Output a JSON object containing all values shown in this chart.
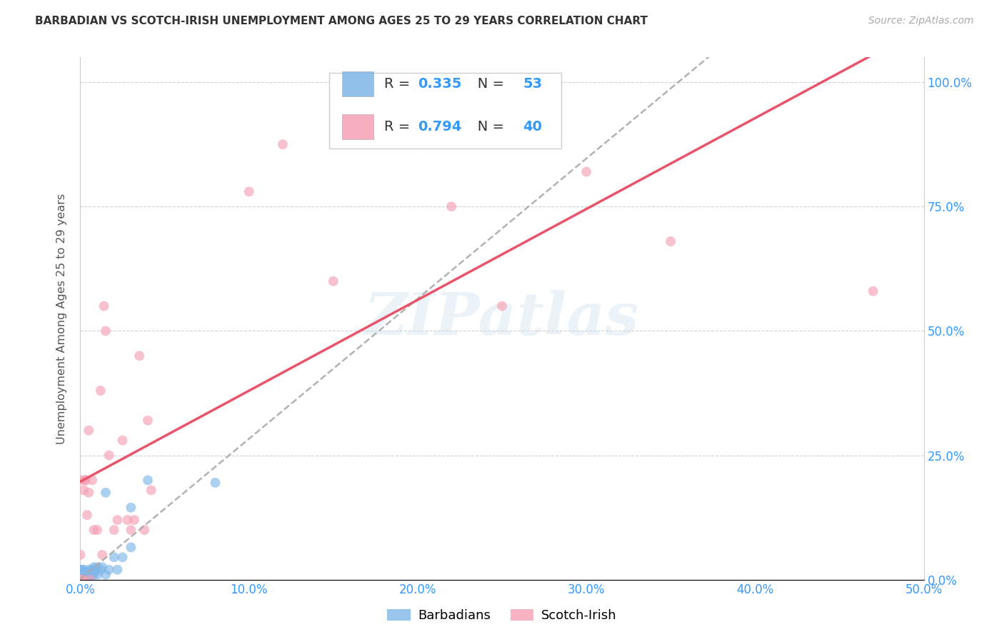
{
  "title": "BARBADIAN VS SCOTCH-IRISH UNEMPLOYMENT AMONG AGES 25 TO 29 YEARS CORRELATION CHART",
  "source": "Source: ZipAtlas.com",
  "ylabel": "Unemployment Among Ages 25 to 29 years",
  "xlim": [
    0.0,
    0.5
  ],
  "ylim": [
    0.0,
    1.05
  ],
  "xticks": [
    0.0,
    0.1,
    0.2,
    0.3,
    0.4,
    0.5
  ],
  "yticks": [
    0.0,
    0.25,
    0.5,
    0.75,
    1.0
  ],
  "xticklabels": [
    "0.0%",
    "10.0%",
    "20.0%",
    "30.0%",
    "40.0%",
    "50.0%"
  ],
  "yticklabels_left": [
    "0.0%",
    "25.0%",
    "50.0%",
    "75.0%",
    "100.0%"
  ],
  "yticklabels_right": [
    "0.0%",
    "25.0%",
    "50.0%",
    "75.0%",
    "100.0%"
  ],
  "barbadian_color": "#7eb7e8",
  "scotchirish_color": "#f5a0b5",
  "barbadian_R": 0.335,
  "barbadian_N": 53,
  "scotchirish_R": 0.794,
  "scotchirish_N": 40,
  "barbadian_line_color": "#7eb7e8",
  "scotchirish_line_color": "#e8546a",
  "watermark": "ZIPatlas",
  "legend_label_1": "Barbadians",
  "legend_label_2": "Scotch-Irish",
  "barbadian_x": [
    0.0,
    0.0,
    0.0,
    0.0,
    0.0,
    0.0,
    0.0,
    0.0,
    0.0,
    0.0,
    0.0,
    0.0,
    0.0,
    0.0,
    0.0,
    0.001,
    0.001,
    0.001,
    0.001,
    0.001,
    0.002,
    0.002,
    0.002,
    0.002,
    0.003,
    0.003,
    0.003,
    0.004,
    0.004,
    0.005,
    0.005,
    0.005,
    0.006,
    0.006,
    0.007,
    0.007,
    0.008,
    0.008,
    0.009,
    0.01,
    0.01,
    0.012,
    0.013,
    0.015,
    0.015,
    0.017,
    0.02,
    0.022,
    0.025,
    0.03,
    0.03,
    0.04,
    0.08
  ],
  "barbadian_y": [
    0.0,
    0.0,
    0.0,
    0.0,
    0.0,
    0.0,
    0.0,
    0.005,
    0.008,
    0.01,
    0.01,
    0.015,
    0.02,
    0.0,
    0.0,
    0.0,
    0.0,
    0.005,
    0.01,
    0.02,
    0.0,
    0.005,
    0.01,
    0.02,
    0.0,
    0.005,
    0.01,
    0.005,
    0.015,
    0.0,
    0.01,
    0.02,
    0.005,
    0.015,
    0.01,
    0.02,
    0.01,
    0.025,
    0.02,
    0.01,
    0.025,
    0.02,
    0.025,
    0.01,
    0.175,
    0.02,
    0.045,
    0.02,
    0.045,
    0.065,
    0.145,
    0.2,
    0.195
  ],
  "scotchirish_x": [
    0.0,
    0.0,
    0.001,
    0.001,
    0.002,
    0.002,
    0.003,
    0.003,
    0.004,
    0.005,
    0.005,
    0.006,
    0.007,
    0.008,
    0.01,
    0.012,
    0.013,
    0.014,
    0.015,
    0.017,
    0.02,
    0.022,
    0.025,
    0.028,
    0.03,
    0.032,
    0.035,
    0.038,
    0.04,
    0.042,
    0.1,
    0.12,
    0.15,
    0.18,
    0.2,
    0.22,
    0.25,
    0.3,
    0.35,
    0.47
  ],
  "scotchirish_y": [
    0.0,
    0.05,
    0.0,
    0.2,
    0.0,
    0.18,
    0.2,
    0.2,
    0.13,
    0.175,
    0.3,
    0.0,
    0.2,
    0.1,
    0.1,
    0.38,
    0.05,
    0.55,
    0.5,
    0.25,
    0.1,
    0.12,
    0.28,
    0.12,
    0.1,
    0.12,
    0.45,
    0.1,
    0.32,
    0.18,
    0.78,
    0.875,
    0.6,
    1.0,
    0.875,
    0.75,
    0.55,
    0.82,
    0.68,
    0.58
  ]
}
